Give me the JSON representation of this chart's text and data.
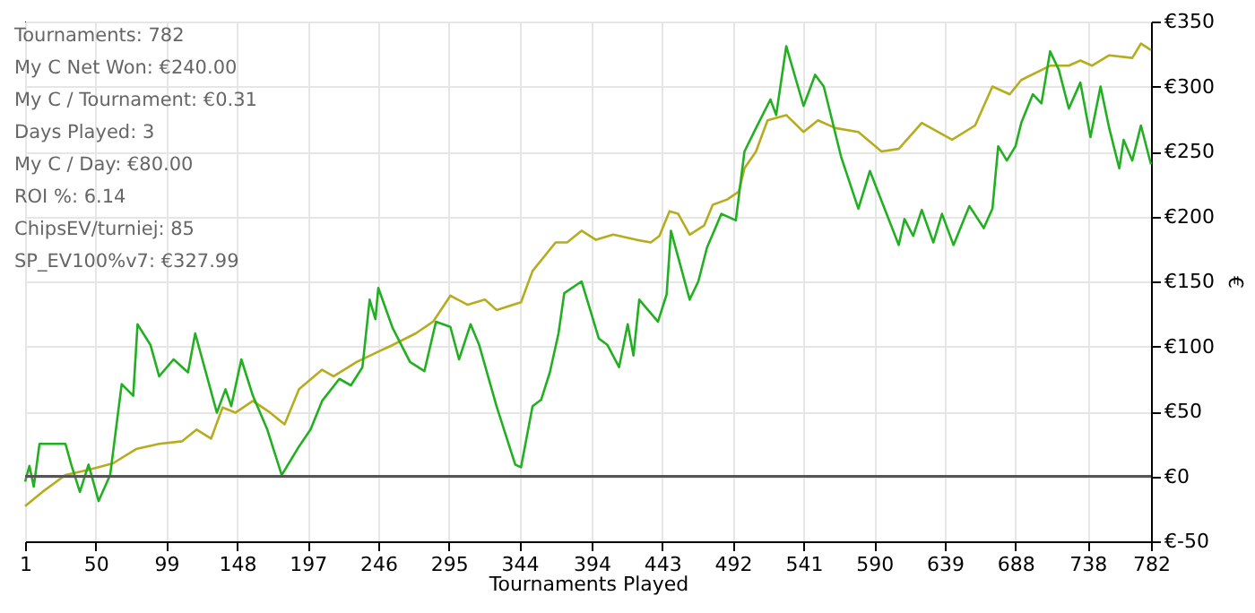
{
  "chart_data": {
    "type": "line",
    "xlabel": "Tournaments Played",
    "ylabel": "€",
    "xlim": [
      1,
      782
    ],
    "xticks": [
      1,
      50,
      99,
      148,
      197,
      246,
      295,
      344,
      394,
      443,
      492,
      541,
      590,
      639,
      688,
      738,
      782
    ],
    "ylim": [
      -50,
      350
    ],
    "yticks": [
      {
        "value": -50,
        "label": "€-50"
      },
      {
        "value": 0,
        "label": "€0"
      },
      {
        "value": 50,
        "label": "€50"
      },
      {
        "value": 100,
        "label": "€100"
      },
      {
        "value": 150,
        "label": "€150"
      },
      {
        "value": 200,
        "label": "€200"
      },
      {
        "value": 250,
        "label": "€250"
      },
      {
        "value": 300,
        "label": "€300"
      },
      {
        "value": 350,
        "label": "€350"
      }
    ],
    "grid": true,
    "legend": false,
    "line_style": "solid",
    "marker": "none",
    "ref_lines": [
      {
        "axis": "y",
        "value": 0,
        "color": "#555555"
      }
    ],
    "annotations": [
      "Tournaments: 782",
      "My C Net Won: €240.00",
      "My C / Tournament: €0.31",
      "Days Played: 3",
      "My C / Day: €80.00",
      "ROI %: 6.14",
      "ChipsEV/turniej: 85",
      "SP_EV100%v7: €327.99"
    ],
    "series": [
      {
        "color": "#b5ad1e",
        "x": [
          1,
          13,
          29,
          45,
          62,
          78,
          94,
          110,
          120,
          130,
          138,
          147,
          159,
          171,
          181,
          191,
          207,
          215,
          231,
          248,
          254,
          272,
          284,
          296,
          308,
          320,
          328,
          345,
          353,
          369,
          377,
          387,
          397,
          409,
          425,
          435,
          441,
          448,
          454,
          462,
          472,
          478,
          488,
          496,
          500,
          508,
          516,
          529,
          541,
          551,
          563,
          579,
          595,
          607,
          623,
          644,
          660,
          672,
          684,
          692,
          712,
          725,
          733,
          741,
          753,
          769,
          775,
          782
        ],
        "values": [
          -23,
          -12,
          1,
          5,
          10,
          21,
          25,
          27,
          36,
          29,
          53,
          49,
          58,
          49,
          40,
          67,
          82,
          77,
          88,
          97,
          100,
          110,
          119,
          139,
          132,
          136,
          128,
          134,
          158,
          180,
          180,
          189,
          182,
          186,
          182,
          180,
          185,
          204,
          202,
          186,
          193,
          209,
          213,
          219,
          237,
          250,
          274,
          278,
          265,
          274,
          268,
          265,
          250,
          252,
          272,
          259,
          270,
          300,
          294,
          305,
          316,
          316,
          320,
          316,
          324,
          322,
          333,
          328
        ]
      },
      {
        "color": "#22b022",
        "x": [
          1,
          4,
          7,
          11,
          29,
          33,
          39,
          45,
          52,
          60,
          68,
          76,
          79,
          88,
          94,
          104,
          114,
          119,
          134,
          140,
          144,
          151,
          159,
          169,
          179,
          191,
          199,
          207,
          219,
          227,
          235,
          240,
          244,
          246,
          256,
          268,
          278,
          286,
          296,
          302,
          310,
          316,
          328,
          341,
          345,
          353,
          359,
          365,
          371,
          375,
          387,
          393,
          399,
          405,
          413,
          419,
          423,
          427,
          440,
          446,
          449,
          462,
          468,
          474,
          484,
          494,
          500,
          508,
          518,
          522,
          529,
          541,
          549,
          555,
          567,
          579,
          587,
          607,
          611,
          617,
          623,
          631,
          637,
          645,
          656,
          666,
          672,
          676,
          682,
          688,
          692,
          700,
          706,
          712,
          718,
          725,
          733,
          740,
          747,
          753,
          760,
          763,
          769,
          775,
          782
        ],
        "values": [
          -4,
          8,
          -8,
          25,
          25,
          9,
          -12,
          9,
          -19,
          1,
          71,
          62,
          117,
          101,
          77,
          90,
          80,
          110,
          49,
          67,
          54,
          90,
          62,
          36,
          1,
          23,
          36,
          58,
          75,
          70,
          84,
          136,
          121,
          145,
          114,
          88,
          81,
          119,
          115,
          90,
          117,
          101,
          54,
          9,
          7,
          54,
          59,
          80,
          110,
          141,
          150,
          128,
          106,
          101,
          84,
          117,
          93,
          136,
          119,
          140,
          189,
          136,
          150,
          176,
          202,
          197,
          250,
          268,
          290,
          278,
          331,
          285,
          309,
          300,
          246,
          206,
          235,
          178,
          198,
          185,
          205,
          180,
          202,
          178,
          208,
          191,
          206,
          254,
          243,
          254,
          272,
          294,
          287,
          327,
          313,
          283,
          303,
          261,
          300,
          268,
          237,
          259,
          243,
          270,
          240
        ]
      }
    ]
  }
}
